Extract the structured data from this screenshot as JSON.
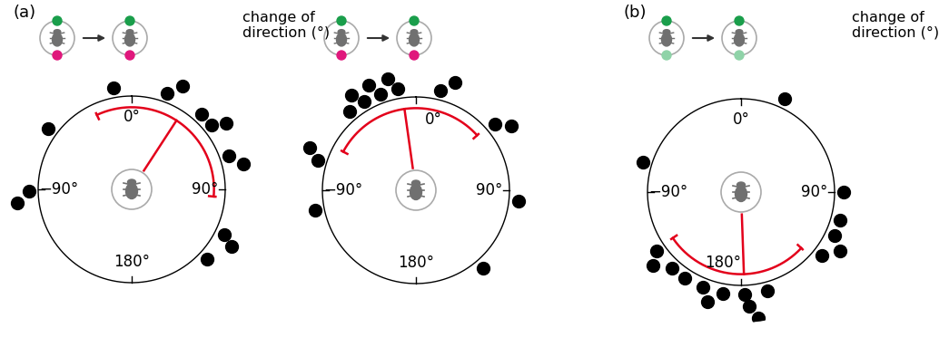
{
  "chart_data": [
    {
      "type": "circular",
      "title": "(a)",
      "axis_label": "change of direction (°)",
      "color": "#000000",
      "values": [
        -54,
        -10,
        20,
        26,
        43,
        51,
        55,
        71,
        77,
        116,
        120,
        133,
        -91,
        -97
      ],
      "mean_direction": 33,
      "mean_vector_length": 0.88,
      "arc": [
        -25,
        95
      ],
      "ticks": [
        {
          "value": 0,
          "label": "0°"
        },
        {
          "value": 90,
          "label": "90°"
        },
        {
          "value": 180,
          "label": "180°"
        },
        {
          "value": -90,
          "label": "−90°"
        }
      ]
    },
    {
      "type": "circular",
      "color": "#000000",
      "values": [
        -73,
        -68,
        -40,
        -34,
        -30,
        -24,
        -20,
        -14,
        -10,
        14,
        20,
        50,
        56,
        -101,
        96,
        139
      ],
      "mean_direction": -8,
      "mean_vector_length": 0.88,
      "arc": [
        -62,
        48
      ],
      "ticks": [
        {
          "value": 0,
          "label": "0°"
        },
        {
          "value": 90,
          "label": "90°"
        },
        {
          "value": 180,
          "label": "180°"
        },
        {
          "value": -90,
          "label": "−90°"
        }
      ]
    },
    {
      "type": "circular",
      "title": "(b)",
      "axis_label": "change of direction (°)",
      "color": "#000000",
      "values": [
        -73,
        25,
        90,
        106,
        115,
        121,
        128,
        -125,
        -130,
        -138,
        -147,
        -158,
        -163,
        -170,
        178,
        176,
        172,
        165
      ],
      "mean_direction": 178,
      "mean_vector_length": 0.88,
      "arc": [
        133,
        236
      ],
      "ticks": [
        {
          "value": 0,
          "label": "0°"
        },
        {
          "value": 90,
          "label": "90°"
        },
        {
          "value": 180,
          "label": "180°"
        },
        {
          "value": -90,
          "label": "−90°"
        }
      ]
    }
  ]
}
